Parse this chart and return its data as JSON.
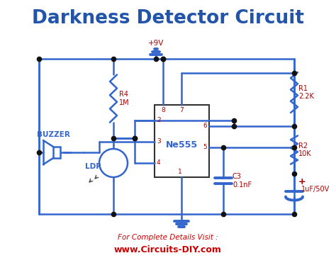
{
  "title": "Darkness Detector Circuit",
  "title_color": "#2255aa",
  "title_fontsize": 19,
  "bg_color": "#ffffff",
  "circuit_color": "#3366cc",
  "label_color": "#aa0000",
  "footer_text": "For Complete Details Visit :",
  "footer_url": "www.Circuits-DIY.com",
  "footer_color": "#cc0000",
  "lw": 1.8,
  "dot_size": 4.5,
  "ic_label": "Ne555",
  "vcc_label": "+9V",
  "R1_label": "R1\n2.2K",
  "R2_label": "R2\n10K",
  "R4_label": "R4\n1M",
  "C3_label": "C3\n0.1nF",
  "C4_label": "1uF/50V",
  "LDR_label": "LDR",
  "BUZZER_label": "BUZZER"
}
